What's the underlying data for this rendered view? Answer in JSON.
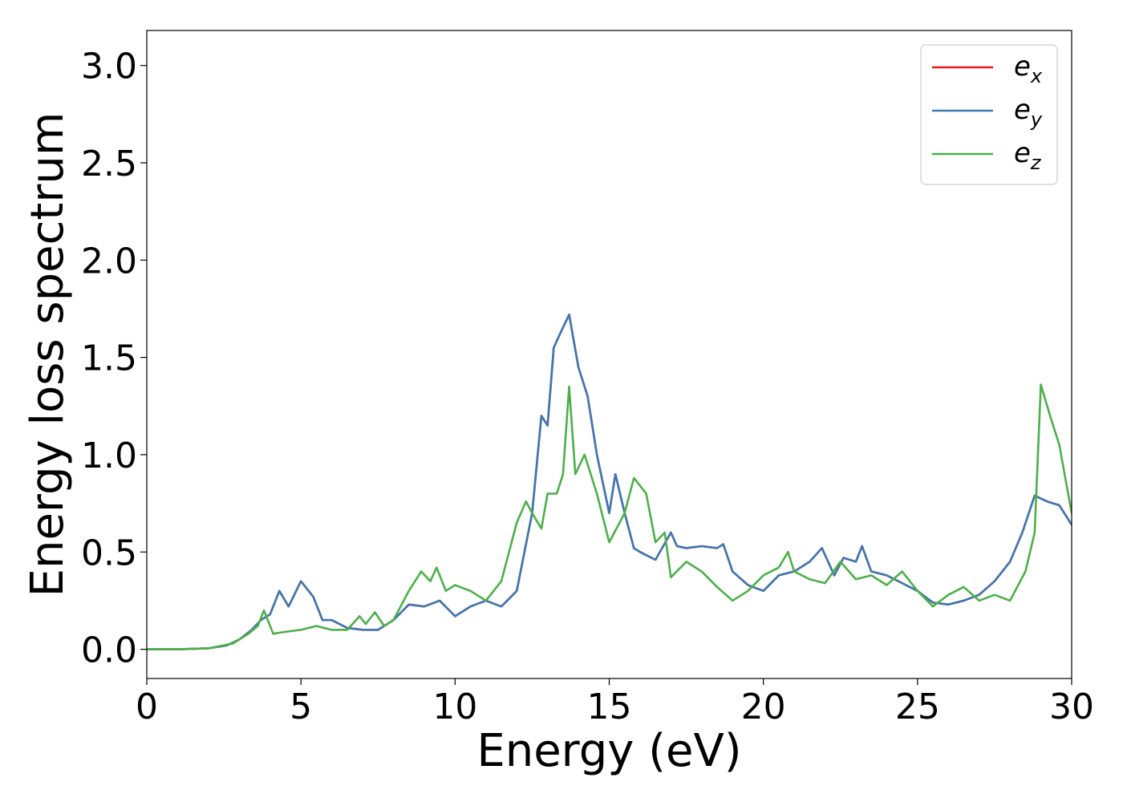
{
  "chart_data": {
    "type": "line",
    "title": "",
    "xlabel": "Energy (eV)",
    "ylabel": "Energy loss spectrum",
    "xlim": [
      0,
      30
    ],
    "ylim": [
      -0.15,
      3.18
    ],
    "xticks": [
      0,
      5,
      10,
      15,
      20,
      25,
      30
    ],
    "xtick_labels": [
      "0",
      "5",
      "10",
      "15",
      "20",
      "25",
      "30"
    ],
    "yticks": [
      0.0,
      0.5,
      1.0,
      1.5,
      2.0,
      2.5,
      3.0
    ],
    "ytick_labels": [
      "0.0",
      "0.5",
      "1.0",
      "1.5",
      "2.0",
      "2.5",
      "3.0"
    ],
    "grid": false,
    "legend_position": "top-right",
    "series": [
      {
        "name": "e_x",
        "label_base": "e",
        "label_sub": "x",
        "color": "#e41a1c",
        "x": [
          0,
          1,
          2,
          2.6,
          3.0,
          3.4,
          3.7,
          4.0,
          4.3,
          4.6,
          5.0,
          5.4,
          5.7,
          6.0,
          6.5,
          7.0,
          7.5,
          8.0,
          8.5,
          9.0,
          9.5,
          10.0,
          10.5,
          11.0,
          11.5,
          12.0,
          12.5,
          12.8,
          13.0,
          13.2,
          13.4,
          13.7,
          14.0,
          14.3,
          14.6,
          15.0,
          15.2,
          15.5,
          15.8,
          16.0,
          16.5,
          17.0,
          17.2,
          17.5,
          18.0,
          18.5,
          18.7,
          19.0,
          19.5,
          20.0,
          20.5,
          21.0,
          21.5,
          21.9,
          22.3,
          22.6,
          23.0,
          23.2,
          23.5,
          24.0,
          24.5,
          25.0,
          25.5,
          26.0,
          26.5,
          27.0,
          27.5,
          28.0,
          28.4,
          28.8,
          29.2,
          29.6,
          30.0
        ],
        "y": [
          0.0,
          0.0,
          0.005,
          0.02,
          0.05,
          0.1,
          0.15,
          0.18,
          0.3,
          0.22,
          0.35,
          0.27,
          0.15,
          0.15,
          0.11,
          0.1,
          0.1,
          0.15,
          0.23,
          0.22,
          0.25,
          0.17,
          0.22,
          0.25,
          0.22,
          0.3,
          0.7,
          1.2,
          1.15,
          1.55,
          1.62,
          1.72,
          1.45,
          1.3,
          1.0,
          0.7,
          0.9,
          0.7,
          0.52,
          0.5,
          0.46,
          0.6,
          0.53,
          0.52,
          0.53,
          0.52,
          0.54,
          0.4,
          0.33,
          0.3,
          0.38,
          0.4,
          0.45,
          0.52,
          0.38,
          0.47,
          0.45,
          0.53,
          0.4,
          0.38,
          0.34,
          0.3,
          0.24,
          0.23,
          0.25,
          0.28,
          0.35,
          0.45,
          0.6,
          0.79,
          0.76,
          0.74,
          0.64
        ]
      },
      {
        "name": "e_y",
        "label_base": "e",
        "label_sub": "y",
        "color": "#3f78b0",
        "x": [
          0,
          1,
          2,
          2.6,
          3.0,
          3.4,
          3.7,
          4.0,
          4.3,
          4.6,
          5.0,
          5.4,
          5.7,
          6.0,
          6.5,
          7.0,
          7.5,
          8.0,
          8.5,
          9.0,
          9.5,
          10.0,
          10.5,
          11.0,
          11.5,
          12.0,
          12.5,
          12.8,
          13.0,
          13.2,
          13.4,
          13.7,
          14.0,
          14.3,
          14.6,
          15.0,
          15.2,
          15.5,
          15.8,
          16.0,
          16.5,
          17.0,
          17.2,
          17.5,
          18.0,
          18.5,
          18.7,
          19.0,
          19.5,
          20.0,
          20.5,
          21.0,
          21.5,
          21.9,
          22.3,
          22.6,
          23.0,
          23.2,
          23.5,
          24.0,
          24.5,
          25.0,
          25.5,
          26.0,
          26.5,
          27.0,
          27.5,
          28.0,
          28.4,
          28.8,
          29.2,
          29.6,
          30.0
        ],
        "y": [
          0.0,
          0.0,
          0.005,
          0.02,
          0.05,
          0.1,
          0.15,
          0.18,
          0.3,
          0.22,
          0.35,
          0.27,
          0.15,
          0.15,
          0.11,
          0.1,
          0.1,
          0.15,
          0.23,
          0.22,
          0.25,
          0.17,
          0.22,
          0.25,
          0.22,
          0.3,
          0.7,
          1.2,
          1.15,
          1.55,
          1.62,
          1.72,
          1.45,
          1.3,
          1.0,
          0.7,
          0.9,
          0.7,
          0.52,
          0.5,
          0.46,
          0.6,
          0.53,
          0.52,
          0.53,
          0.52,
          0.54,
          0.4,
          0.33,
          0.3,
          0.38,
          0.4,
          0.45,
          0.52,
          0.38,
          0.47,
          0.45,
          0.53,
          0.4,
          0.38,
          0.34,
          0.3,
          0.24,
          0.23,
          0.25,
          0.28,
          0.35,
          0.45,
          0.6,
          0.79,
          0.76,
          0.74,
          0.64
        ]
      },
      {
        "name": "e_z",
        "label_base": "e",
        "label_sub": "z",
        "color": "#4daf4a",
        "x": [
          0,
          1,
          2,
          2.8,
          3.3,
          3.6,
          3.8,
          4.1,
          4.5,
          5.0,
          5.5,
          6.0,
          6.5,
          6.9,
          7.1,
          7.4,
          7.7,
          8.0,
          8.5,
          8.9,
          9.2,
          9.4,
          9.7,
          10.0,
          10.5,
          11.0,
          11.5,
          12.0,
          12.3,
          12.5,
          12.8,
          13.0,
          13.3,
          13.5,
          13.7,
          13.9,
          14.2,
          14.6,
          15.0,
          15.5,
          15.8,
          16.2,
          16.5,
          16.8,
          17.0,
          17.5,
          18.0,
          18.5,
          19.0,
          19.5,
          20.0,
          20.5,
          20.8,
          21.0,
          21.5,
          22.0,
          22.5,
          23.0,
          23.5,
          24.0,
          24.5,
          25.0,
          25.5,
          26.0,
          26.5,
          27.0,
          27.5,
          28.0,
          28.5,
          28.8,
          29.0,
          29.3,
          29.6,
          30.0
        ],
        "y": [
          0.0,
          0.0,
          0.005,
          0.03,
          0.08,
          0.12,
          0.2,
          0.08,
          0.09,
          0.1,
          0.12,
          0.1,
          0.1,
          0.17,
          0.13,
          0.19,
          0.12,
          0.15,
          0.3,
          0.4,
          0.35,
          0.42,
          0.3,
          0.33,
          0.3,
          0.25,
          0.35,
          0.65,
          0.76,
          0.7,
          0.62,
          0.8,
          0.8,
          0.9,
          1.35,
          0.9,
          1.0,
          0.8,
          0.55,
          0.7,
          0.88,
          0.8,
          0.55,
          0.6,
          0.37,
          0.45,
          0.4,
          0.32,
          0.25,
          0.3,
          0.38,
          0.42,
          0.5,
          0.4,
          0.36,
          0.34,
          0.45,
          0.36,
          0.38,
          0.33,
          0.4,
          0.3,
          0.22,
          0.28,
          0.32,
          0.25,
          0.28,
          0.25,
          0.4,
          0.6,
          1.36,
          1.2,
          1.05,
          0.7
        ]
      }
    ]
  }
}
